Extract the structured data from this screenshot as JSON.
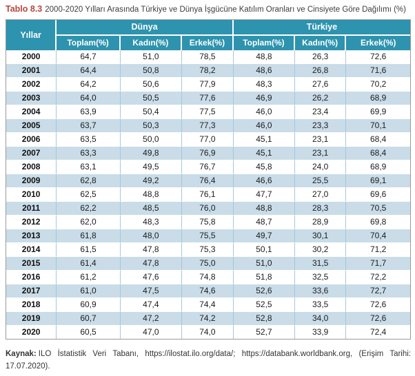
{
  "title": {
    "label": "Tablo 8.3",
    "text": "2000-2020 Yılları Arasında Türkiye ve Dünya İşgücüne Katılım Oranları ve Cinsiyete Göre Dağılımı (%)"
  },
  "table": {
    "year_header": "Yıllar",
    "groups": [
      {
        "label": "Dünya"
      },
      {
        "label": "Türkiye"
      }
    ],
    "sub_headers": [
      "Toplam(%)",
      "Kadın(%)",
      "Erkek(%)",
      "Toplam(%)",
      "Kadın(%)",
      "Erkek(%)"
    ],
    "rows": [
      {
        "year": "2000",
        "values": [
          "64,7",
          "51,0",
          "78,5",
          "48,8",
          "26,3",
          "72,6"
        ]
      },
      {
        "year": "2001",
        "values": [
          "64,4",
          "50,8",
          "78,2",
          "48,6",
          "26,8",
          "71,6"
        ]
      },
      {
        "year": "2002",
        "values": [
          "64,2",
          "50,6",
          "77,9",
          "48,3",
          "27,6",
          "70,2"
        ]
      },
      {
        "year": "2003",
        "values": [
          "64,0",
          "50,5",
          "77,6",
          "46,9",
          "26,2",
          "68,9"
        ]
      },
      {
        "year": "2004",
        "values": [
          "63,9",
          "50,4",
          "77,5",
          "46,0",
          "23,4",
          "69,9"
        ]
      },
      {
        "year": "2005",
        "values": [
          "63,7",
          "50,3",
          "77,3",
          "46,0",
          "23,3",
          "70,1"
        ]
      },
      {
        "year": "2006",
        "values": [
          "63,5",
          "50,0",
          "77,0",
          "45,1",
          "23,1",
          "68,4"
        ]
      },
      {
        "year": "2007",
        "values": [
          "63,3",
          "49,8",
          "76,9",
          "45,1",
          "23,1",
          "68,4"
        ]
      },
      {
        "year": "2008",
        "values": [
          "63,1",
          "49,5",
          "76,7",
          "45,8",
          "24,0",
          "68,9"
        ]
      },
      {
        "year": "2009",
        "values": [
          "62,8",
          "49,2",
          "76,4",
          "46,6",
          "25,5",
          "69,1"
        ]
      },
      {
        "year": "2010",
        "values": [
          "62,5",
          "48,8",
          "76,1",
          "47,7",
          "27,0",
          "69,6"
        ]
      },
      {
        "year": "2011",
        "values": [
          "62,2",
          "48,5",
          "76,0",
          "48,8",
          "28,3",
          "70,5"
        ]
      },
      {
        "year": "2012",
        "values": [
          "62,0",
          "48,3",
          "75,8",
          "48,7",
          "28,9",
          "69,8"
        ]
      },
      {
        "year": "2013",
        "values": [
          "61,8",
          "48,0",
          "75,5",
          "49,7",
          "30,1",
          "70,4"
        ]
      },
      {
        "year": "2014",
        "values": [
          "61,5",
          "47,8",
          "75,3",
          "50,1",
          "30,2",
          "71,2"
        ]
      },
      {
        "year": "2015",
        "values": [
          "61,4",
          "47,8",
          "75,0",
          "51,0",
          "31,5",
          "71,7"
        ]
      },
      {
        "year": "2016",
        "values": [
          "61,2",
          "47,6",
          "74,8",
          "51,8",
          "32,5",
          "72,2"
        ]
      },
      {
        "year": "2017",
        "values": [
          "61,0",
          "47,5",
          "74,6",
          "52,6",
          "33,6",
          "72,7"
        ]
      },
      {
        "year": "2018",
        "values": [
          "60,9",
          "47,4",
          "74,4",
          "52,5",
          "33,5",
          "72,6"
        ]
      },
      {
        "year": "2019",
        "values": [
          "60,7",
          "47,2",
          "74,2",
          "52,8",
          "34,0",
          "72,6"
        ]
      },
      {
        "year": "2020",
        "values": [
          "60,5",
          "47,0",
          "74,0",
          "52,7",
          "33,9",
          "72,4"
        ]
      }
    ]
  },
  "footer": {
    "label": "Kaynak:",
    "text": "ILO İstatistik Veri Tabanı, https://ilostat.ilo.org/data/; https://databank.worldbank.org, (Erişim Tarihi: 17.07.2020)."
  },
  "colors": {
    "header_bg": "#2D93AE",
    "alt_row_bg": "#C9DCE8",
    "grid_line": "#A6C7D9",
    "title_accent": "#B5463C",
    "outer_border": "#9A9A9A"
  }
}
